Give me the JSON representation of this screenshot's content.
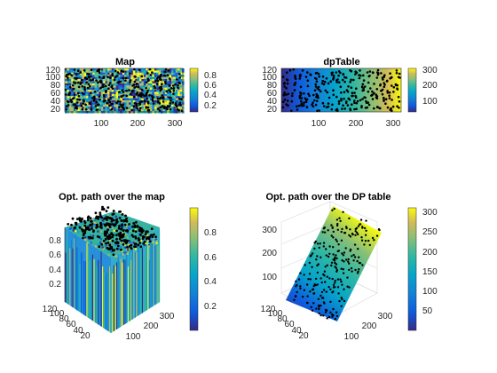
{
  "figure": {
    "background": "#ffffff"
  },
  "chart_data": [
    {
      "type": "heatmap",
      "title": "Map",
      "colormap": "parula",
      "x_ticks": [
        100,
        200,
        300
      ],
      "y_ticks": [
        20,
        40,
        60,
        80,
        100,
        120
      ],
      "xlim": [
        1,
        320
      ],
      "ylim": [
        1,
        120
      ],
      "colorbar": {
        "ticks": [
          "0.2",
          "0.4",
          "0.6",
          "0.8"
        ],
        "min": 0.05,
        "max": 0.95
      },
      "overlay": "optimal path points (black markers)"
    },
    {
      "type": "heatmap",
      "title": "dpTable",
      "colormap": "parula",
      "x_ticks": [
        100,
        200,
        300
      ],
      "y_ticks": [
        20,
        40,
        60,
        80,
        100,
        120
      ],
      "xlim": [
        1,
        320
      ],
      "ylim": [
        1,
        120
      ],
      "colorbar": {
        "ticks": [
          "100",
          "200",
          "300"
        ],
        "min": 10,
        "max": 320
      },
      "overlay": "optimal path points (black markers)"
    },
    {
      "type": "surface3d",
      "title": "Opt. path over the map",
      "colormap": "parula",
      "z_ticks": [
        "0.2",
        "0.4",
        "0.6",
        "0.8"
      ],
      "y_ticks": [
        "20",
        "40",
        "60",
        "80",
        "100",
        "120"
      ],
      "x_ticks": [
        "100",
        "200",
        "300"
      ],
      "colorbar": {
        "ticks": [
          "0.2",
          "0.4",
          "0.6",
          "0.8"
        ],
        "min": 0.0,
        "max": 1.0
      }
    },
    {
      "type": "surface3d",
      "title": "Opt. path over the DP table",
      "colormap": "parula",
      "z_ticks": [
        "100",
        "200",
        "300"
      ],
      "y_ticks": [
        "20",
        "40",
        "60",
        "80",
        "100",
        "120"
      ],
      "x_ticks": [
        "100",
        "200",
        "300"
      ],
      "colorbar": {
        "ticks": [
          "50",
          "100",
          "150",
          "200",
          "250",
          "300"
        ],
        "min": 5,
        "max": 320
      }
    }
  ]
}
